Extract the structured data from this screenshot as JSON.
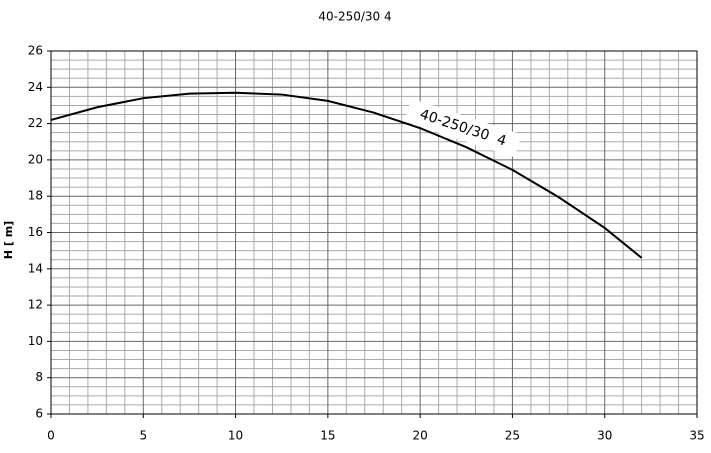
{
  "chart_data": {
    "type": "line",
    "title": "40-250/30 4",
    "y_label": "H [ m]",
    "x": [
      0,
      2.5,
      5,
      7.5,
      10,
      12.5,
      15,
      17.5,
      20,
      22.5,
      25,
      27.5,
      30,
      32
    ],
    "series": [
      {
        "name": "40-250/30  4",
        "color": "#000000",
        "values": [
          22.2,
          22.9,
          23.4,
          23.65,
          23.7,
          23.6,
          23.25,
          22.6,
          21.75,
          20.7,
          19.45,
          17.95,
          16.25,
          14.6
        ]
      }
    ],
    "xlim": [
      0,
      35
    ],
    "xticks": [
      0,
      5,
      10,
      15,
      20,
      25,
      30,
      35
    ],
    "ylim": [
      6,
      26
    ],
    "yticks": [
      6,
      8,
      10,
      12,
      14,
      16,
      18,
      20,
      22,
      24,
      26
    ],
    "grid": true
  }
}
